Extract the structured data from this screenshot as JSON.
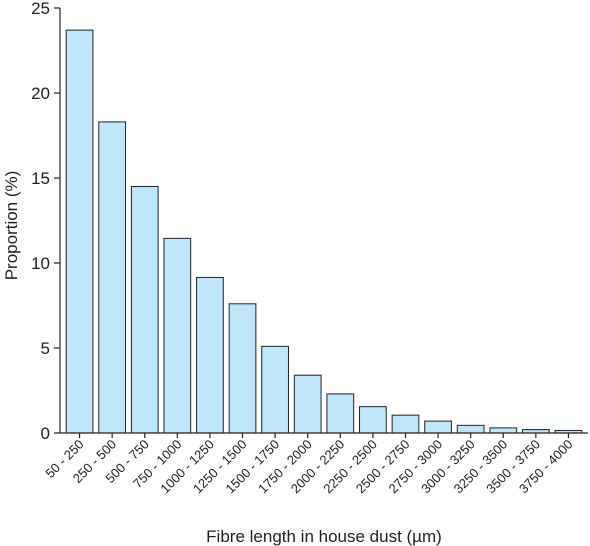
{
  "chart_data": {
    "type": "bar",
    "xlabel": "Fibre length in house dust  (µm)",
    "ylabel": "Proportion (%)",
    "ylim": [
      0,
      25
    ],
    "yticks": [
      0,
      5,
      10,
      15,
      20,
      25
    ],
    "categories": [
      "50 - 250",
      "250 - 500",
      "500 - 750",
      "750 - 1000",
      "1000 - 1250",
      "1250 - 1500",
      "1500 - 1750",
      "1750 - 2000",
      "2000 - 2250",
      "2250 - 2500",
      "2500 - 2750",
      "2750 - 3000",
      "3000 - 3250",
      "3250 - 3500",
      "3500 - 3750",
      "3750 - 4000"
    ],
    "values": [
      23.7,
      18.3,
      14.5,
      11.45,
      9.15,
      7.6,
      5.1,
      3.4,
      2.3,
      1.55,
      1.05,
      0.7,
      0.45,
      0.3,
      0.2,
      0.15
    ],
    "bar_color": "#bfe6fb",
    "bar_edge_color": "#222222",
    "grid": false
  }
}
